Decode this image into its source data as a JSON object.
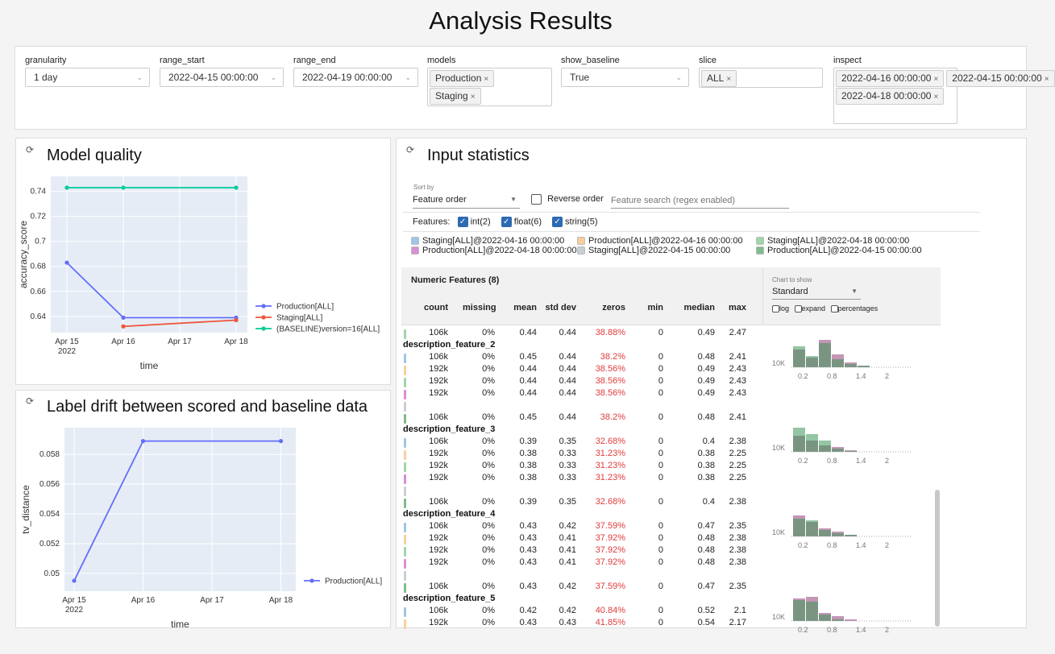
{
  "page_title": "Analysis Results",
  "controls": {
    "granularity": {
      "label": "granularity",
      "value": "1 day"
    },
    "range_start": {
      "label": "range_start",
      "value": "2022-04-15 00:00:00"
    },
    "range_end": {
      "label": "range_end",
      "value": "2022-04-19 00:00:00"
    },
    "models": {
      "label": "models",
      "tags": [
        "Production",
        "Staging"
      ]
    },
    "show_baseline": {
      "label": "show_baseline",
      "value": "True"
    },
    "slice": {
      "label": "slice",
      "tags": [
        "ALL"
      ]
    },
    "inspect": {
      "label": "inspect",
      "tags": [
        "2022-04-16 00:00:00",
        "2022-04-18 00:00:00",
        "2022-04-15 00:00:00"
      ]
    }
  },
  "model_quality": {
    "title": "Model quality",
    "chart_data": {
      "type": "line",
      "ylabel": "accuracy_score",
      "xlabel": "time",
      "x_ticks": [
        "Apr 15",
        "Apr 16",
        "Apr 17",
        "Apr 18"
      ],
      "x_tick_year": "2022",
      "y_ticks": [
        "0.74",
        "0.72",
        "0.7",
        "0.68",
        "0.66",
        "0.64"
      ],
      "ylim": [
        0.627,
        0.752
      ],
      "grid": true,
      "legend": "right",
      "series": [
        {
          "name": "Production[ALL]",
          "color": "#636efa",
          "x": [
            0,
            1,
            3
          ],
          "values": [
            0.683,
            0.639,
            0.639
          ]
        },
        {
          "name": "Staging[ALL]",
          "color": "#ef553b",
          "x": [
            1,
            3
          ],
          "values": [
            0.632,
            0.637
          ]
        },
        {
          "name": "(BASELINE)version=16[ALL]",
          "color": "#00cc96",
          "x": [
            0,
            1,
            3
          ],
          "values": [
            0.743,
            0.743,
            0.743
          ]
        }
      ]
    }
  },
  "label_drift": {
    "title": "Label drift between scored and baseline data",
    "chart_data": {
      "type": "line",
      "ylabel": "tv_distance",
      "xlabel": "time",
      "x_ticks": [
        "Apr 15",
        "Apr 16",
        "Apr 17",
        "Apr 18"
      ],
      "x_tick_year": "2022",
      "y_ticks": [
        "0.058",
        "0.056",
        "0.054",
        "0.052",
        "0.05"
      ],
      "ylim": [
        0.0488,
        0.0598
      ],
      "grid": true,
      "legend": "right",
      "series": [
        {
          "name": "Production[ALL]",
          "color": "#636efa",
          "x": [
            0,
            1,
            3
          ],
          "values": [
            0.0495,
            0.0589,
            0.0589
          ]
        }
      ]
    }
  },
  "input_stats": {
    "title": "Input statistics",
    "sort_by_label": "Sort by",
    "sort_by_value": "Feature order",
    "reverse_order": "Reverse order",
    "search_placeholder": "Feature search (regex enabled)",
    "features_label": "Features:",
    "feature_types": [
      "int(2)",
      "float(6)",
      "string(5)"
    ],
    "legend": [
      {
        "label": "Staging[ALL]@2022-04-16 00:00:00",
        "color": "#9ec6e6"
      },
      {
        "label": "Production[ALL]@2022-04-16 00:00:00",
        "color": "#f7cf9c"
      },
      {
        "label": "Staging[ALL]@2022-04-18 00:00:00",
        "color": "#9fd6a8"
      },
      {
        "label": "Production[ALL]@2022-04-18 00:00:00",
        "color": "#d98fd6"
      },
      {
        "label": "Staging[ALL]@2022-04-15 00:00:00",
        "color": "#c8d0d6"
      },
      {
        "label": "Production[ALL]@2022-04-15 00:00:00",
        "color": "#7ebd8c"
      }
    ],
    "section_title": "Numeric Features (8)",
    "chart_to_show_label": "Chart to show",
    "chart_to_show_value": "Standard",
    "chart_opts": [
      "log",
      "expand",
      "percentages"
    ],
    "columns": [
      "count",
      "missing",
      "mean",
      "std dev",
      "zeros",
      "min",
      "median",
      "max"
    ],
    "hist_ticks": [
      "0.2",
      "0.8",
      "1.4",
      "2"
    ],
    "hist_ylabel": "10K",
    "top_row": {
      "color": "#9fd6a8",
      "v": [
        "106k",
        "0%",
        "0.44",
        "0.44",
        "38.88%",
        "0",
        "0.49",
        "2.47"
      ]
    },
    "features": [
      {
        "name": "description_feature_2",
        "rows": [
          {
            "color": "#9ec6e6",
            "v": [
              "106k",
              "0%",
              "0.45",
              "0.44",
              "38.2%",
              "0",
              "0.48",
              "2.41"
            ]
          },
          {
            "color": "#f7cf9c",
            "v": [
              "192k",
              "0%",
              "0.44",
              "0.44",
              "38.56%",
              "0",
              "0.49",
              "2.43"
            ]
          },
          {
            "color": "#9fd6a8",
            "v": [
              "192k",
              "0%",
              "0.44",
              "0.44",
              "38.56%",
              "0",
              "0.49",
              "2.43"
            ]
          },
          {
            "color": "#d98fd6",
            "v": [
              "192k",
              "0%",
              "0.44",
              "0.44",
              "38.56%",
              "0",
              "0.49",
              "2.43"
            ]
          },
          {
            "color": "#c8d0d6",
            "v": [
              "",
              "",
              "",
              "",
              "",
              "",
              "",
              ""
            ]
          },
          {
            "color": "#7ebd8c",
            "v": [
              "106k",
              "0%",
              "0.45",
              "0.44",
              "38.2%",
              "0",
              "0.48",
              "2.41"
            ]
          }
        ]
      },
      {
        "name": "description_feature_3",
        "rows": [
          {
            "color": "#9ec6e6",
            "v": [
              "106k",
              "0%",
              "0.39",
              "0.35",
              "32.68%",
              "0",
              "0.4",
              "2.38"
            ]
          },
          {
            "color": "#f7cf9c",
            "v": [
              "192k",
              "0%",
              "0.38",
              "0.33",
              "31.23%",
              "0",
              "0.38",
              "2.25"
            ]
          },
          {
            "color": "#9fd6a8",
            "v": [
              "192k",
              "0%",
              "0.38",
              "0.33",
              "31.23%",
              "0",
              "0.38",
              "2.25"
            ]
          },
          {
            "color": "#d98fd6",
            "v": [
              "192k",
              "0%",
              "0.38",
              "0.33",
              "31.23%",
              "0",
              "0.38",
              "2.25"
            ]
          },
          {
            "color": "#c8d0d6",
            "v": [
              "",
              "",
              "",
              "",
              "",
              "",
              "",
              ""
            ]
          },
          {
            "color": "#7ebd8c",
            "v": [
              "106k",
              "0%",
              "0.39",
              "0.35",
              "32.68%",
              "0",
              "0.4",
              "2.38"
            ]
          }
        ]
      },
      {
        "name": "description_feature_4",
        "rows": [
          {
            "color": "#9ec6e6",
            "v": [
              "106k",
              "0%",
              "0.43",
              "0.42",
              "37.59%",
              "0",
              "0.47",
              "2.35"
            ]
          },
          {
            "color": "#f7cf9c",
            "v": [
              "192k",
              "0%",
              "0.43",
              "0.41",
              "37.92%",
              "0",
              "0.48",
              "2.38"
            ]
          },
          {
            "color": "#9fd6a8",
            "v": [
              "192k",
              "0%",
              "0.43",
              "0.41",
              "37.92%",
              "0",
              "0.48",
              "2.38"
            ]
          },
          {
            "color": "#d98fd6",
            "v": [
              "192k",
              "0%",
              "0.43",
              "0.41",
              "37.92%",
              "0",
              "0.48",
              "2.38"
            ]
          },
          {
            "color": "#c8d0d6",
            "v": [
              "",
              "",
              "",
              "",
              "",
              "",
              "",
              ""
            ]
          },
          {
            "color": "#7ebd8c",
            "v": [
              "106k",
              "0%",
              "0.43",
              "0.42",
              "37.59%",
              "0",
              "0.47",
              "2.35"
            ]
          }
        ]
      },
      {
        "name": "description_feature_5",
        "rows": [
          {
            "color": "#9ec6e6",
            "v": [
              "106k",
              "0%",
              "0.42",
              "0.42",
              "40.84%",
              "0",
              "0.52",
              "2.1"
            ]
          },
          {
            "color": "#f7cf9c",
            "v": [
              "192k",
              "0%",
              "0.43",
              "0.43",
              "41.85%",
              "0",
              "0.54",
              "2.17"
            ]
          }
        ]
      }
    ]
  }
}
